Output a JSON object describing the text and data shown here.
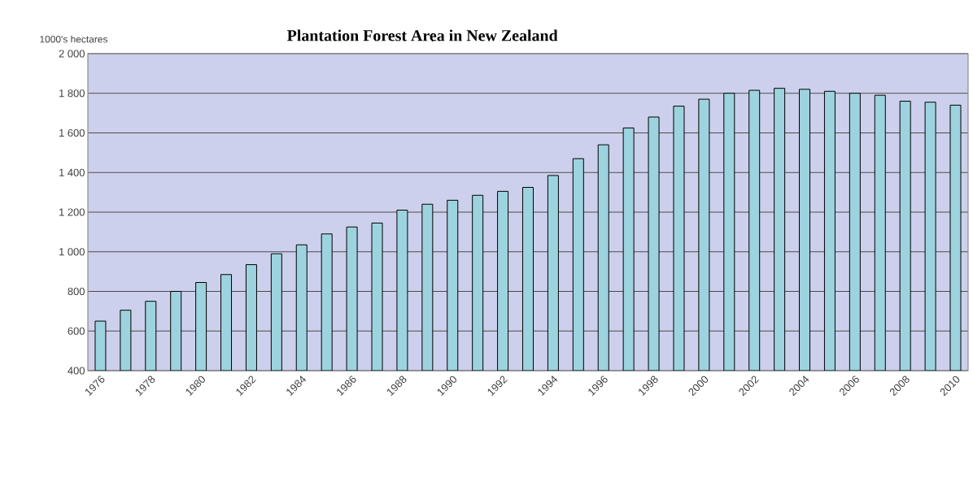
{
  "chart_data": {
    "type": "bar",
    "title": "Plantation Forest Area in New Zealand",
    "ylabel": "1000's hectares",
    "categories": [
      "1976",
      null,
      "1978",
      null,
      "1980",
      null,
      "1982",
      null,
      "1984",
      null,
      "1986",
      null,
      "1988",
      null,
      "1990",
      null,
      "1992",
      null,
      "1994",
      null,
      "1996",
      null,
      "1998",
      null,
      "2000",
      null,
      "2002",
      null,
      "2004",
      null,
      "2006",
      null,
      "2008",
      null,
      "2010"
    ],
    "values": [
      650,
      705,
      750,
      800,
      845,
      885,
      935,
      990,
      1035,
      1090,
      1125,
      1145,
      1210,
      1240,
      1260,
      1285,
      1305,
      1325,
      1385,
      1470,
      1540,
      1625,
      1680,
      1735,
      1770,
      1800,
      1815,
      1825,
      1820,
      1810,
      1800,
      1790,
      1760,
      1755,
      1740
    ],
    "color": "#9dd3df",
    "ylim": [
      400,
      2000
    ],
    "yticks": [
      {
        "value": 400,
        "label": "400"
      },
      {
        "value": 600,
        "label": "600"
      },
      {
        "value": 800,
        "label": "800"
      },
      {
        "value": 1000,
        "label": "1 000"
      },
      {
        "value": 1200,
        "label": "1 200"
      },
      {
        "value": 1400,
        "label": "1 400"
      },
      {
        "value": 1600,
        "label": "1 600"
      },
      {
        "value": 1800,
        "label": "1 800"
      },
      {
        "value": 2000,
        "label": "2 000"
      }
    ],
    "grid": "y"
  }
}
